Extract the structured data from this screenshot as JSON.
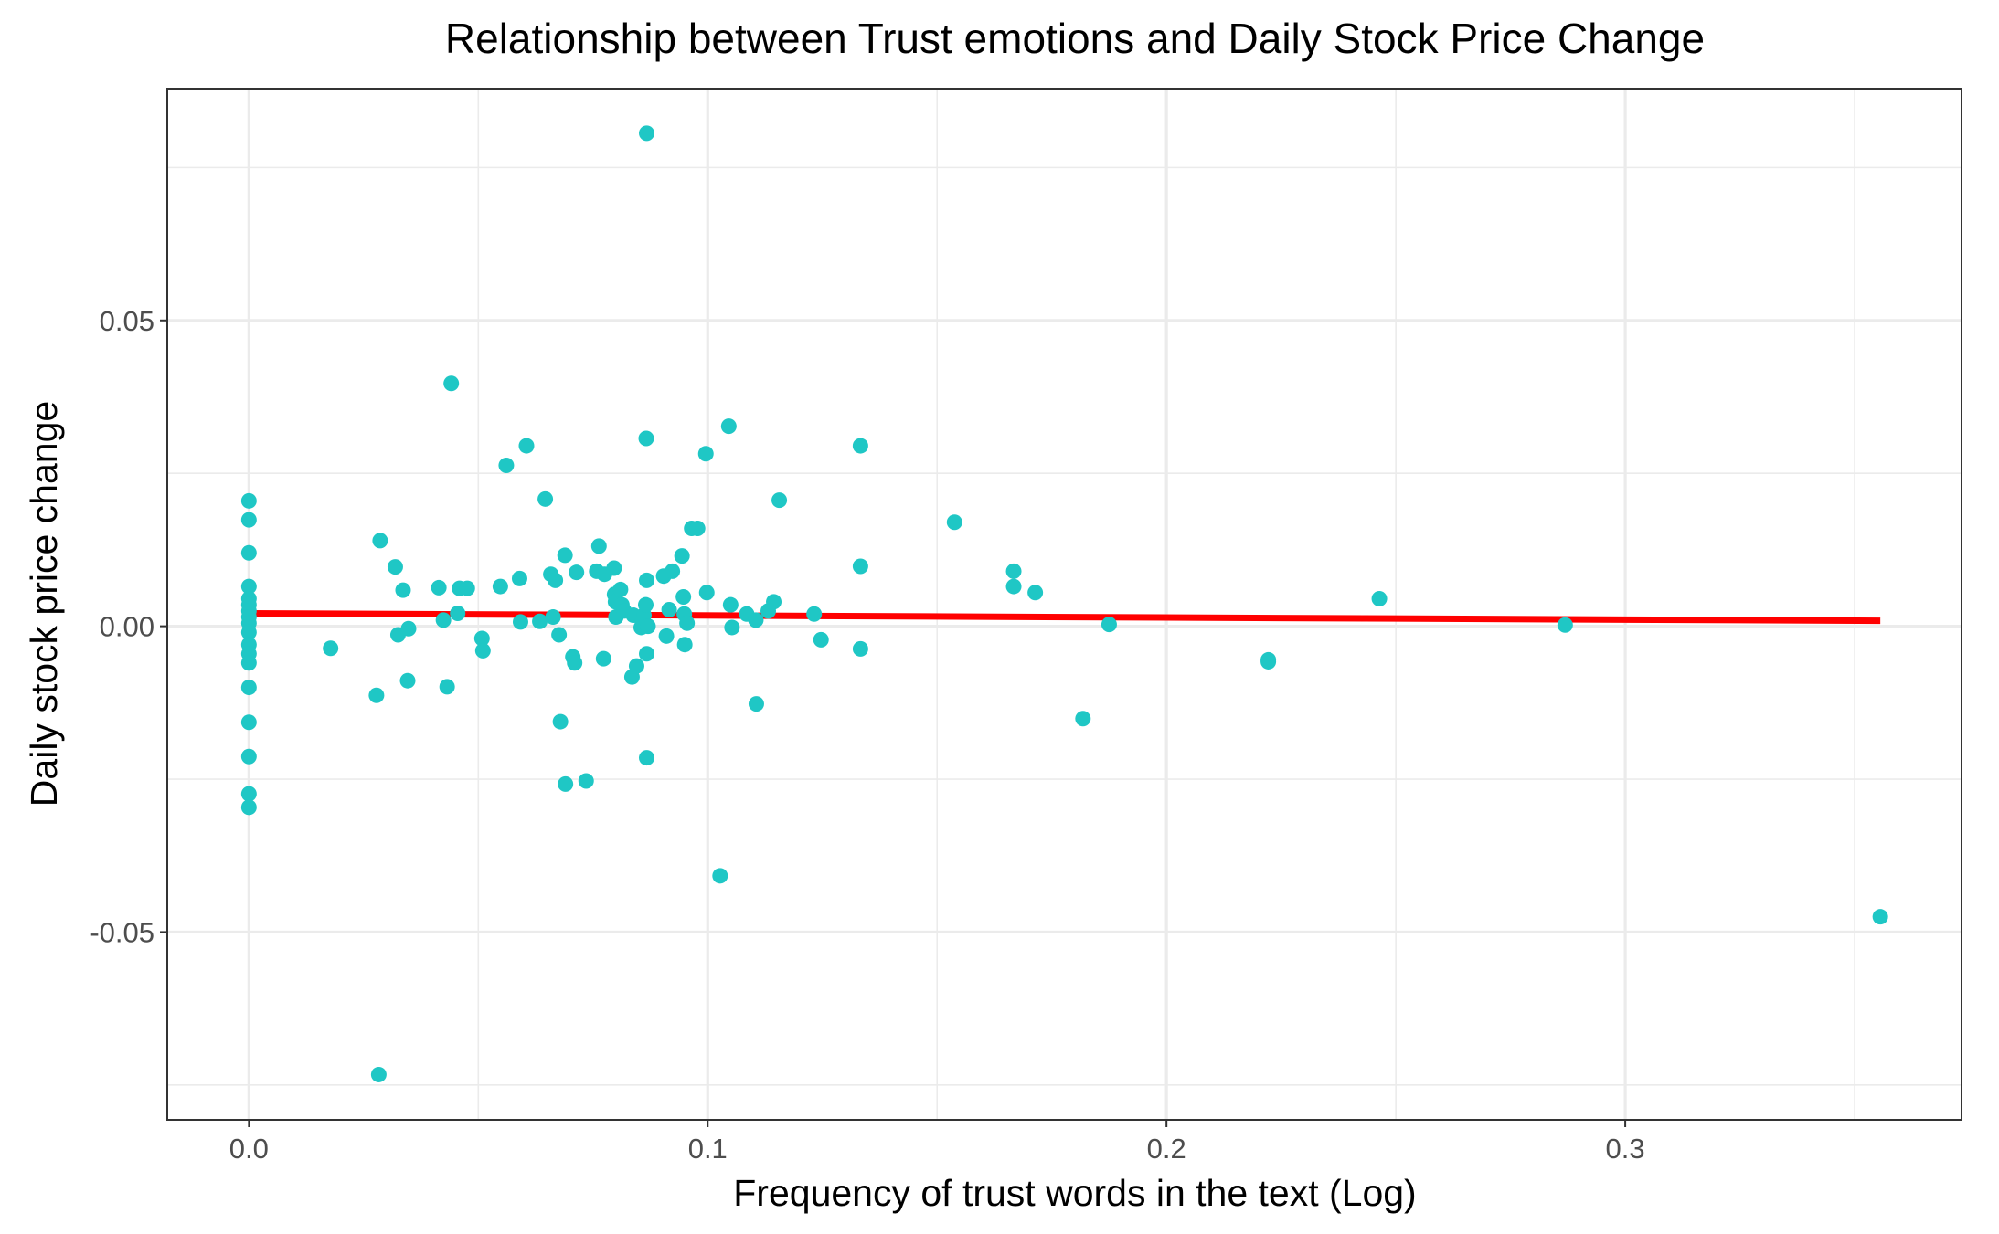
{
  "chart_data": {
    "type": "scatter",
    "title": "Relationship between Trust emotions and Daily Stock Price Change",
    "xlabel": "Frequency of trust words in the text (Log)",
    "ylabel": "Daily stock price change",
    "xlim": [
      -0.0178,
      0.3733
    ],
    "ylim": [
      -0.0807,
      0.0879
    ],
    "x_ticks": [
      0.0,
      0.1,
      0.2,
      0.3
    ],
    "x_tick_labels": [
      "0.0",
      "0.1",
      "0.2",
      "0.3"
    ],
    "y_ticks": [
      -0.05,
      0.0,
      0.05
    ],
    "y_tick_labels": [
      "-0.05",
      "0.00",
      "0.05"
    ],
    "grid": true,
    "point_color": "#1fc7c5",
    "trend_color": "#ff0000",
    "trend_line": [
      [
        0.0,
        0.0021
      ],
      [
        0.3556,
        0.0009
      ]
    ],
    "points": [
      [
        0.0,
        0.0205
      ],
      [
        0.0,
        0.0174
      ],
      [
        0.0,
        0.012
      ],
      [
        0.0,
        0.0065
      ],
      [
        0.0,
        0.0045
      ],
      [
        0.0,
        0.0035
      ],
      [
        0.0,
        0.0025
      ],
      [
        0.0,
        0.0015
      ],
      [
        0.0,
        0.0005
      ],
      [
        0.0,
        -0.001
      ],
      [
        0.0,
        -0.003
      ],
      [
        0.0,
        -0.0045
      ],
      [
        0.0,
        -0.006
      ],
      [
        0.0,
        -0.01
      ],
      [
        0.0,
        -0.0157
      ],
      [
        0.0,
        -0.0213
      ],
      [
        0.0,
        -0.0274
      ],
      [
        0.0,
        -0.0296
      ],
      [
        0.0178,
        -0.0036
      ],
      [
        0.0278,
        -0.0113
      ],
      [
        0.0283,
        -0.0733
      ],
      [
        0.0286,
        0.014
      ],
      [
        0.0319,
        0.0097
      ],
      [
        0.0325,
        -0.0014
      ],
      [
        0.0336,
        0.0059
      ],
      [
        0.0346,
        -0.0089
      ],
      [
        0.0348,
        -0.0004
      ],
      [
        0.0414,
        0.0063
      ],
      [
        0.0424,
        0.001
      ],
      [
        0.0432,
        -0.0099
      ],
      [
        0.0441,
        0.0397
      ],
      [
        0.0455,
        0.0021
      ],
      [
        0.0459,
        0.0062
      ],
      [
        0.0476,
        0.0062
      ],
      [
        0.0508,
        -0.002
      ],
      [
        0.051,
        -0.004
      ],
      [
        0.0548,
        0.0065
      ],
      [
        0.0561,
        0.0263
      ],
      [
        0.059,
        0.0078
      ],
      [
        0.0592,
        0.0007
      ],
      [
        0.0605,
        0.0295
      ],
      [
        0.0634,
        0.0008
      ],
      [
        0.0646,
        0.0208
      ],
      [
        0.0658,
        0.0085
      ],
      [
        0.0663,
        0.0015
      ],
      [
        0.0668,
        0.0075
      ],
      [
        0.0676,
        -0.0014
      ],
      [
        0.0679,
        -0.0156
      ],
      [
        0.0689,
        0.0116
      ],
      [
        0.069,
        -0.0258
      ],
      [
        0.0706,
        -0.005
      ],
      [
        0.071,
        -0.006
      ],
      [
        0.0714,
        0.0088
      ],
      [
        0.0735,
        -0.0253
      ],
      [
        0.0758,
        0.009
      ],
      [
        0.0763,
        0.0131
      ],
      [
        0.0773,
        -0.0053
      ],
      [
        0.0775,
        0.0085
      ],
      [
        0.0796,
        0.0095
      ],
      [
        0.0797,
        0.0052
      ],
      [
        0.0799,
        0.004
      ],
      [
        0.08,
        0.0015
      ],
      [
        0.081,
        0.006
      ],
      [
        0.0813,
        0.0035
      ],
      [
        0.0818,
        0.0025
      ],
      [
        0.0835,
        -0.0083
      ],
      [
        0.0838,
        0.0018
      ],
      [
        0.0845,
        -0.0065
      ],
      [
        0.0855,
        -0.0002
      ],
      [
        0.0858,
        0.0008
      ],
      [
        0.0861,
        0.0018
      ],
      [
        0.0865,
        0.0035
      ],
      [
        0.0866,
        0.0307
      ],
      [
        0.0867,
        -0.0215
      ],
      [
        0.0867,
        -0.0045
      ],
      [
        0.0867,
        0.0075
      ],
      [
        0.0867,
        0.0806
      ],
      [
        0.087,
        0.0
      ],
      [
        0.0904,
        0.0082
      ],
      [
        0.091,
        -0.0016
      ],
      [
        0.0916,
        0.0027
      ],
      [
        0.0923,
        0.009
      ],
      [
        0.0944,
        0.0115
      ],
      [
        0.0947,
        0.0048
      ],
      [
        0.0949,
        0.002
      ],
      [
        0.095,
        -0.003
      ],
      [
        0.0955,
        0.0005
      ],
      [
        0.0965,
        0.016
      ],
      [
        0.0978,
        0.016
      ],
      [
        0.0996,
        0.0282
      ],
      [
        0.0998,
        0.0055
      ],
      [
        0.1027,
        -0.0408
      ],
      [
        0.1046,
        0.0327
      ],
      [
        0.105,
        0.0035
      ],
      [
        0.1053,
        -0.0002
      ],
      [
        0.1085,
        0.002
      ],
      [
        0.1105,
        0.001
      ],
      [
        0.1106,
        -0.0127
      ],
      [
        0.1132,
        0.0025
      ],
      [
        0.1144,
        0.004
      ],
      [
        0.1156,
        0.0206
      ],
      [
        0.1232,
        0.002
      ],
      [
        0.1247,
        -0.0022
      ],
      [
        0.1333,
        0.0295
      ],
      [
        0.1333,
        0.0098
      ],
      [
        0.1333,
        -0.0037
      ],
      [
        0.1538,
        0.017
      ],
      [
        0.1667,
        0.009
      ],
      [
        0.1667,
        0.0065
      ],
      [
        0.1714,
        0.0055
      ],
      [
        0.1818,
        -0.0151
      ],
      [
        0.1875,
        0.0003
      ],
      [
        0.2222,
        -0.0058
      ],
      [
        0.2222,
        -0.0055
      ],
      [
        0.2464,
        0.0045
      ],
      [
        0.2869,
        0.0002
      ],
      [
        0.3556,
        -0.0475
      ]
    ]
  }
}
